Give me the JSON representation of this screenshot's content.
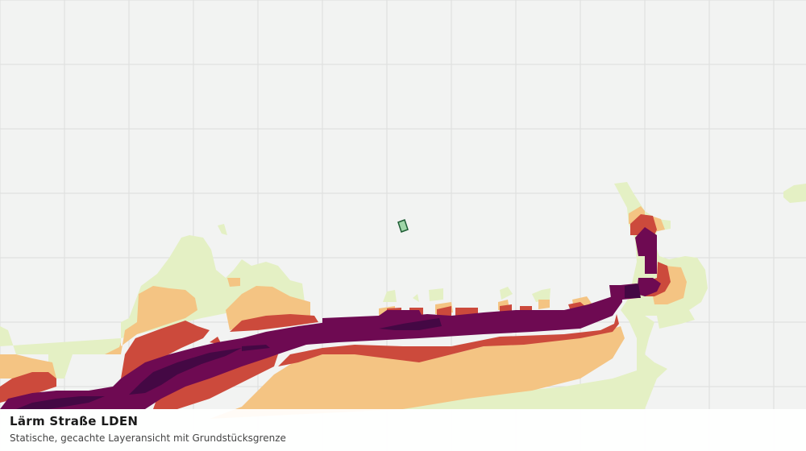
{
  "map": {
    "layer_title": "Lärm Straße LDEN",
    "layer_subtitle": "Statische, gecachte Layeransicht mit Grundstücksgrenze",
    "colors": {
      "background": "#f2f3f2",
      "grid": "#dcdedc",
      "noise_band_1": "#e4f0c4",
      "noise_band_2": "#f4c483",
      "noise_band_3": "#cc4a3c",
      "noise_band_4": "#6e0a52",
      "noise_band_5": "#440844",
      "parcel_fill": "#9fd6a8",
      "parcel_outline": "#1f5e35"
    },
    "icons": [
      "parcel-boundary-marker"
    ]
  }
}
